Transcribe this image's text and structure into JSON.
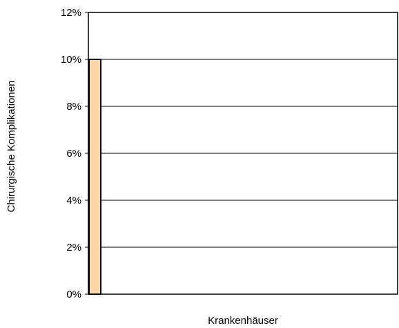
{
  "chart_data": {
    "type": "bar",
    "categories": [
      ""
    ],
    "values": [
      10
    ],
    "xlabel": "Krankenhäuser",
    "ylabel": "Chirurgische Komplikationen",
    "ylim": [
      0,
      12
    ],
    "yticks": [
      0,
      2,
      4,
      6,
      8,
      10,
      12
    ],
    "ytick_labels": [
      "0%",
      "2%",
      "4%",
      "6%",
      "8%",
      "10%",
      "12%"
    ],
    "grid": true,
    "legend": "none",
    "bar_color": "#FFD5A8",
    "bar_edge_color": "#000000"
  }
}
